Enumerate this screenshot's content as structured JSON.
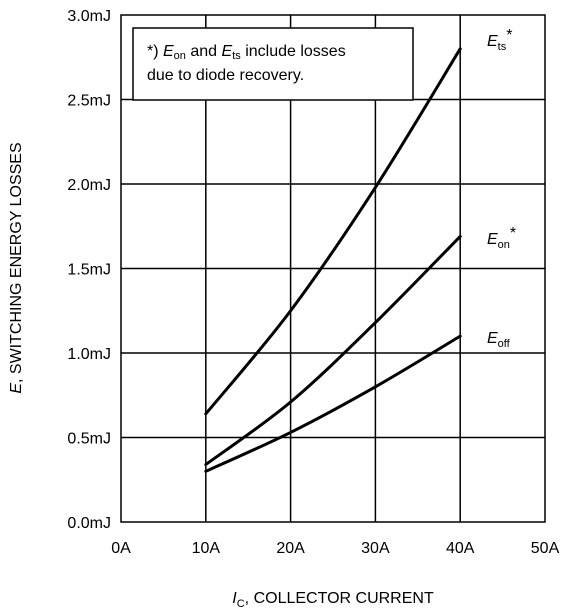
{
  "chart_data": {
    "type": "line",
    "title": "",
    "xlabel": {
      "symbol": "I",
      "subscript": "C",
      "text": ", COLLECTOR CURRENT"
    },
    "ylabel": {
      "symbol": "E",
      "text": ", SWITCHING ENERGY LOSSES"
    },
    "xlim": [
      0,
      50
    ],
    "ylim": [
      0,
      3.0
    ],
    "x_ticks": [
      0,
      10,
      20,
      30,
      40,
      50
    ],
    "x_tick_labels": [
      "0A",
      "10A",
      "20A",
      "30A",
      "40A",
      "50A"
    ],
    "y_ticks": [
      0,
      0.5,
      1.0,
      1.5,
      2.0,
      2.5,
      3.0
    ],
    "y_tick_labels": [
      "0.0mJ",
      "0.5mJ",
      "1.0mJ",
      "1.5mJ",
      "2.0mJ",
      "2.5mJ",
      "3.0mJ"
    ],
    "grid": true,
    "legend": "none",
    "series": [
      {
        "name": "Ets*",
        "label": {
          "symbol": "E",
          "subscript": "ts",
          "suffix": "*"
        },
        "x": [
          10,
          20,
          30,
          40
        ],
        "y": [
          0.64,
          1.25,
          1.98,
          2.8
        ]
      },
      {
        "name": "Eon*",
        "label": {
          "symbol": "E",
          "subscript": "on",
          "suffix": "*"
        },
        "x": [
          10,
          20,
          30,
          40
        ],
        "y": [
          0.34,
          0.71,
          1.18,
          1.69
        ]
      },
      {
        "name": "Eoff",
        "label": {
          "symbol": "E",
          "subscript": "off",
          "suffix": ""
        },
        "x": [
          10,
          20,
          30,
          40
        ],
        "y": [
          0.3,
          0.53,
          0.8,
          1.1
        ]
      }
    ],
    "annotation": {
      "line1": {
        "prefix": "*) ",
        "e1": "E",
        "e1_sub": "on",
        "mid": " and ",
        "e2": "E",
        "e2_sub": "ts",
        "rest": " include losses"
      },
      "line2": "due to diode recovery."
    }
  }
}
